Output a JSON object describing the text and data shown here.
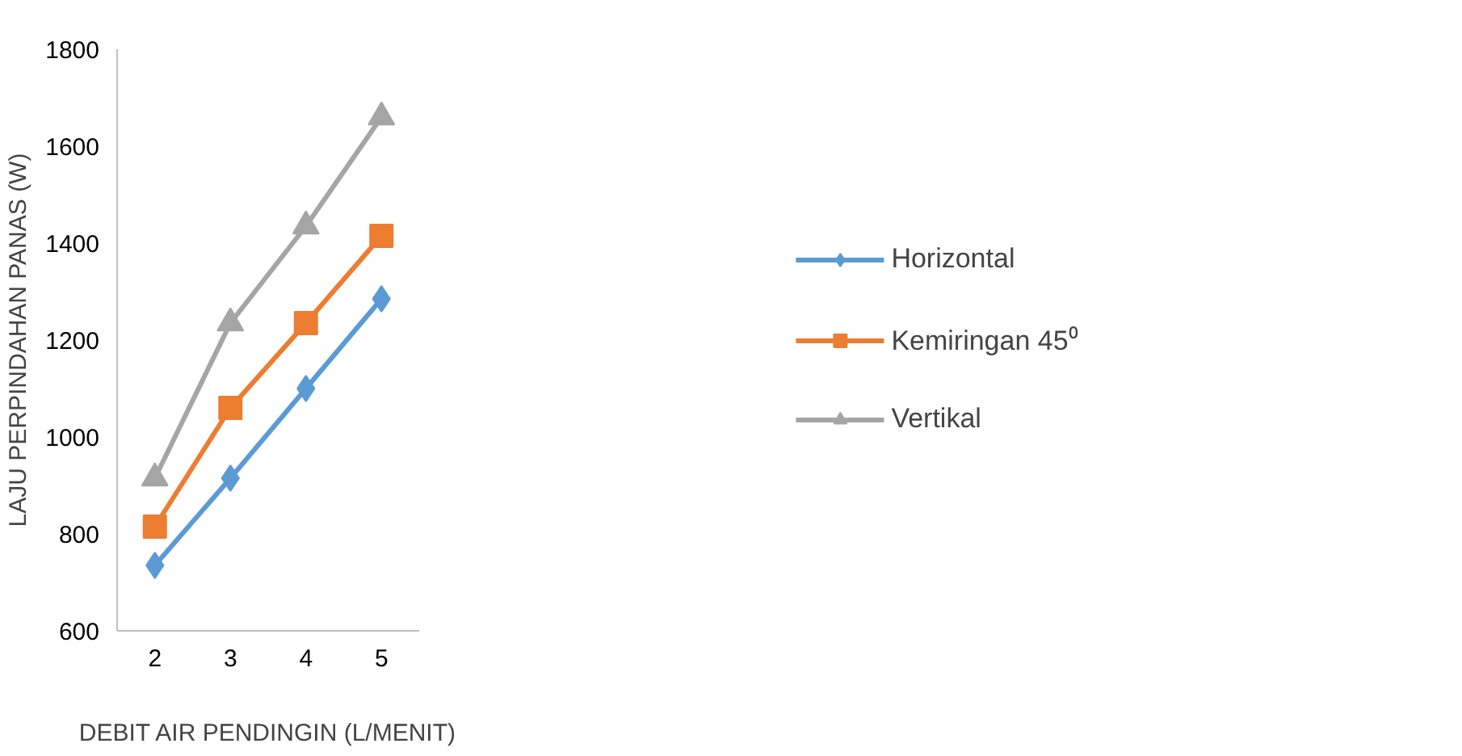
{
  "chart_data": {
    "type": "line",
    "xlabel": "DEBIT AIR PENDINGIN (L/MENIT)",
    "ylabel": "LAJU PERPINDAHAN PANAS (W)",
    "categories": [
      "2",
      "3",
      "4",
      "5"
    ],
    "ylim": [
      600,
      1800
    ],
    "yticks": [
      600,
      800,
      1000,
      1200,
      1400,
      1600,
      1800
    ],
    "grid": false,
    "legend": "right",
    "series": [
      {
        "name": "Horizontal",
        "color": "#5b9bd5",
        "marker": "diamond",
        "values": [
          735,
          915,
          1100,
          1285
        ]
      },
      {
        "name": "Kemiringan 45⁰",
        "color": "#ed7d31",
        "marker": "square",
        "values": [
          815,
          1060,
          1235,
          1415
        ]
      },
      {
        "name": "Vertikal",
        "color": "#a5a5a5",
        "marker": "triangle",
        "values": [
          915,
          1235,
          1435,
          1660
        ]
      }
    ]
  }
}
